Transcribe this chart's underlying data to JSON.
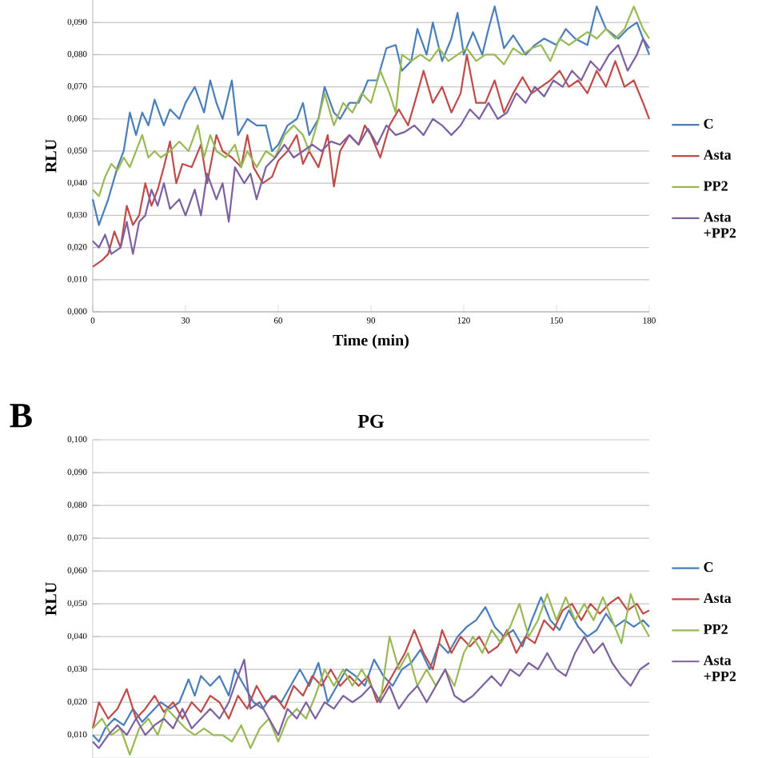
{
  "chart_data": [
    {
      "type": "line",
      "xlabel": "Time (min)",
      "ylabel": "RLU",
      "xlim": [
        0,
        180
      ],
      "xticks": [
        0,
        30,
        60,
        90,
        120,
        150,
        180
      ],
      "ylim": [
        0,
        0.097
      ],
      "yticks": [
        {
          "value": 0,
          "label": "0,000"
        },
        {
          "value": 0.01,
          "label": "0,010"
        },
        {
          "value": 0.02,
          "label": "0,020"
        },
        {
          "value": 0.03,
          "label": "0,030"
        },
        {
          "value": 0.04,
          "label": "0,040"
        },
        {
          "value": 0.05,
          "label": "0,050"
        },
        {
          "value": 0.06,
          "label": "0,060"
        },
        {
          "value": 0.07,
          "label": "0,070"
        },
        {
          "value": 0.08,
          "label": "0,080"
        },
        {
          "value": 0.09,
          "label": "0,090"
        }
      ],
      "grid": "y",
      "legend": "right",
      "marker": "none",
      "line_style": "solid",
      "series": [
        {
          "name": "C",
          "color": "#4a7ebb",
          "x": [
            0,
            2,
            5,
            8,
            10,
            12,
            14,
            16,
            18,
            20,
            23,
            25,
            28,
            30,
            33,
            36,
            38,
            40,
            42,
            45,
            47,
            50,
            53,
            56,
            58,
            60,
            63,
            66,
            68,
            70,
            73,
            75,
            78,
            80,
            83,
            86,
            89,
            92,
            95,
            98,
            100,
            103,
            105,
            108,
            110,
            113,
            116,
            118,
            120,
            123,
            126,
            128,
            130,
            133,
            136,
            140,
            143,
            146,
            150,
            153,
            156,
            160,
            163,
            166,
            170,
            173,
            176,
            178,
            180
          ],
          "values": [
            0.035,
            0.027,
            0.035,
            0.045,
            0.05,
            0.062,
            0.055,
            0.062,
            0.058,
            0.066,
            0.058,
            0.063,
            0.06,
            0.065,
            0.07,
            0.062,
            0.072,
            0.065,
            0.06,
            0.072,
            0.055,
            0.06,
            0.058,
            0.058,
            0.05,
            0.052,
            0.058,
            0.06,
            0.065,
            0.055,
            0.06,
            0.07,
            0.062,
            0.06,
            0.065,
            0.065,
            0.072,
            0.072,
            0.082,
            0.083,
            0.075,
            0.078,
            0.088,
            0.08,
            0.09,
            0.078,
            0.085,
            0.093,
            0.08,
            0.087,
            0.08,
            0.088,
            0.095,
            0.082,
            0.086,
            0.08,
            0.083,
            0.085,
            0.083,
            0.088,
            0.085,
            0.083,
            0.095,
            0.088,
            0.085,
            0.088,
            0.09,
            0.085,
            0.08
          ]
        },
        {
          "name": "Asta",
          "color": "#be4b48",
          "x": [
            0,
            3,
            5,
            7,
            9,
            11,
            13,
            15,
            17,
            19,
            21,
            23,
            25,
            27,
            29,
            32,
            35,
            37,
            40,
            42,
            45,
            48,
            50,
            52,
            55,
            58,
            60,
            63,
            66,
            68,
            70,
            73,
            76,
            78,
            80,
            83,
            86,
            88,
            90,
            93,
            96,
            99,
            102,
            105,
            107,
            110,
            113,
            116,
            119,
            121,
            124,
            127,
            130,
            133,
            136,
            139,
            142,
            145,
            148,
            151,
            154,
            157,
            160,
            163,
            166,
            169,
            172,
            175,
            178,
            180
          ],
          "values": [
            0.014,
            0.016,
            0.018,
            0.025,
            0.02,
            0.033,
            0.027,
            0.03,
            0.04,
            0.033,
            0.038,
            0.045,
            0.053,
            0.04,
            0.046,
            0.045,
            0.052,
            0.04,
            0.055,
            0.05,
            0.048,
            0.045,
            0.055,
            0.045,
            0.04,
            0.042,
            0.047,
            0.05,
            0.055,
            0.046,
            0.05,
            0.045,
            0.055,
            0.039,
            0.05,
            0.055,
            0.052,
            0.058,
            0.055,
            0.048,
            0.058,
            0.063,
            0.058,
            0.068,
            0.075,
            0.065,
            0.07,
            0.062,
            0.068,
            0.08,
            0.065,
            0.065,
            0.072,
            0.062,
            0.068,
            0.073,
            0.068,
            0.07,
            0.072,
            0.075,
            0.07,
            0.072,
            0.068,
            0.075,
            0.07,
            0.078,
            0.07,
            0.072,
            0.065,
            0.06
          ]
        },
        {
          "name": "PP2",
          "color": "#98b954",
          "x": [
            0,
            2,
            4,
            6,
            8,
            10,
            12,
            14,
            16,
            18,
            20,
            22,
            25,
            28,
            31,
            34,
            36,
            38,
            40,
            43,
            46,
            48,
            50,
            53,
            56,
            59,
            62,
            65,
            68,
            70,
            73,
            75,
            78,
            81,
            84,
            87,
            90,
            93,
            96,
            98,
            100,
            103,
            106,
            109,
            112,
            115,
            118,
            121,
            124,
            127,
            130,
            133,
            136,
            139,
            142,
            145,
            148,
            151,
            154,
            157,
            160,
            163,
            166,
            169,
            172,
            175,
            178,
            180
          ],
          "values": [
            0.038,
            0.036,
            0.042,
            0.046,
            0.044,
            0.048,
            0.045,
            0.05,
            0.055,
            0.048,
            0.05,
            0.048,
            0.05,
            0.053,
            0.05,
            0.058,
            0.048,
            0.055,
            0.05,
            0.048,
            0.052,
            0.045,
            0.05,
            0.045,
            0.05,
            0.048,
            0.055,
            0.058,
            0.055,
            0.05,
            0.06,
            0.068,
            0.058,
            0.065,
            0.062,
            0.068,
            0.065,
            0.075,
            0.068,
            0.062,
            0.08,
            0.078,
            0.08,
            0.078,
            0.082,
            0.078,
            0.08,
            0.082,
            0.078,
            0.08,
            0.08,
            0.077,
            0.082,
            0.08,
            0.082,
            0.083,
            0.078,
            0.085,
            0.083,
            0.085,
            0.087,
            0.085,
            0.088,
            0.085,
            0.088,
            0.095,
            0.088,
            0.085
          ]
        },
        {
          "name": "Asta +PP2",
          "color": "#7d60a0",
          "x": [
            0,
            2,
            4,
            6,
            9,
            11,
            13,
            15,
            17,
            19,
            21,
            23,
            25,
            28,
            30,
            33,
            35,
            37,
            40,
            42,
            44,
            46,
            49,
            51,
            53,
            56,
            59,
            62,
            65,
            68,
            71,
            74,
            77,
            80,
            83,
            86,
            89,
            92,
            95,
            98,
            101,
            104,
            107,
            110,
            113,
            116,
            119,
            122,
            125,
            128,
            131,
            134,
            137,
            140,
            143,
            146,
            149,
            152,
            155,
            158,
            161,
            164,
            167,
            170,
            173,
            176,
            178,
            180
          ],
          "values": [
            0.022,
            0.02,
            0.024,
            0.018,
            0.02,
            0.028,
            0.018,
            0.028,
            0.03,
            0.038,
            0.033,
            0.04,
            0.032,
            0.035,
            0.03,
            0.038,
            0.03,
            0.043,
            0.035,
            0.04,
            0.028,
            0.045,
            0.04,
            0.043,
            0.035,
            0.045,
            0.048,
            0.052,
            0.048,
            0.05,
            0.052,
            0.05,
            0.053,
            0.052,
            0.055,
            0.052,
            0.057,
            0.052,
            0.058,
            0.055,
            0.056,
            0.058,
            0.055,
            0.06,
            0.058,
            0.055,
            0.058,
            0.063,
            0.06,
            0.065,
            0.06,
            0.062,
            0.068,
            0.065,
            0.07,
            0.067,
            0.072,
            0.07,
            0.075,
            0.072,
            0.078,
            0.075,
            0.08,
            0.083,
            0.075,
            0.08,
            0.085,
            0.082
          ]
        }
      ]
    },
    {
      "type": "line",
      "title": "PG",
      "annotations": [
        "B"
      ],
      "ylabel": "RLU",
      "xlim": [
        0,
        180
      ],
      "ylim": [
        0.003,
        0.1
      ],
      "tick_labels": "y",
      "yticks": [
        {
          "value": 0.01,
          "label": "0,010"
        },
        {
          "value": 0.02,
          "label": "0,020"
        },
        {
          "value": 0.03,
          "label": "0,030"
        },
        {
          "value": 0.04,
          "label": "0,040"
        },
        {
          "value": 0.05,
          "label": "0,050"
        },
        {
          "value": 0.06,
          "label": "0,060"
        },
        {
          "value": 0.07,
          "label": "0,070"
        },
        {
          "value": 0.08,
          "label": "0,080"
        },
        {
          "value": 0.09,
          "label": "0,090"
        },
        {
          "value": 0.1,
          "label": "0,100"
        }
      ],
      "grid": "y",
      "legend": "right",
      "marker": "none",
      "line_style": "solid",
      "series": [
        {
          "name": "C",
          "color": "#4a7ebb",
          "x": [
            0,
            2,
            4,
            7,
            10,
            13,
            16,
            19,
            22,
            25,
            28,
            31,
            33,
            35,
            38,
            41,
            44,
            46,
            49,
            52,
            55,
            58,
            61,
            64,
            67,
            70,
            73,
            76,
            79,
            82,
            85,
            88,
            91,
            94,
            97,
            100,
            103,
            106,
            109,
            112,
            115,
            118,
            121,
            124,
            127,
            130,
            133,
            136,
            139,
            142,
            145,
            148,
            151,
            154,
            157,
            160,
            163,
            166,
            169,
            172,
            175,
            178,
            180
          ],
          "values": [
            0.01,
            0.008,
            0.012,
            0.015,
            0.013,
            0.018,
            0.014,
            0.017,
            0.02,
            0.018,
            0.02,
            0.027,
            0.022,
            0.028,
            0.025,
            0.028,
            0.022,
            0.03,
            0.025,
            0.02,
            0.018,
            0.022,
            0.02,
            0.025,
            0.03,
            0.025,
            0.032,
            0.02,
            0.025,
            0.03,
            0.028,
            0.025,
            0.033,
            0.028,
            0.025,
            0.03,
            0.032,
            0.036,
            0.03,
            0.038,
            0.035,
            0.04,
            0.043,
            0.045,
            0.049,
            0.043,
            0.04,
            0.042,
            0.037,
            0.045,
            0.052,
            0.045,
            0.042,
            0.048,
            0.043,
            0.04,
            0.042,
            0.047,
            0.043,
            0.045,
            0.043,
            0.045,
            0.043
          ]
        },
        {
          "name": "Asta",
          "color": "#be4b48",
          "x": [
            0,
            2,
            5,
            8,
            11,
            14,
            17,
            20,
            23,
            26,
            29,
            32,
            35,
            38,
            41,
            44,
            47,
            50,
            53,
            56,
            59,
            62,
            65,
            68,
            71,
            74,
            77,
            80,
            83,
            86,
            89,
            92,
            95,
            98,
            101,
            104,
            107,
            110,
            113,
            116,
            119,
            122,
            125,
            128,
            131,
            134,
            137,
            140,
            143,
            146,
            149,
            152,
            155,
            158,
            161,
            164,
            167,
            170,
            173,
            176,
            178,
            180
          ],
          "values": [
            0.012,
            0.02,
            0.015,
            0.018,
            0.024,
            0.015,
            0.018,
            0.022,
            0.017,
            0.02,
            0.015,
            0.02,
            0.017,
            0.022,
            0.02,
            0.015,
            0.022,
            0.018,
            0.025,
            0.02,
            0.022,
            0.018,
            0.025,
            0.022,
            0.028,
            0.025,
            0.03,
            0.025,
            0.028,
            0.025,
            0.028,
            0.02,
            0.025,
            0.03,
            0.035,
            0.042,
            0.035,
            0.03,
            0.042,
            0.035,
            0.04,
            0.037,
            0.04,
            0.035,
            0.037,
            0.042,
            0.035,
            0.04,
            0.038,
            0.045,
            0.042,
            0.048,
            0.05,
            0.045,
            0.05,
            0.047,
            0.05,
            0.052,
            0.048,
            0.05,
            0.047,
            0.048
          ]
        },
        {
          "name": "PP2",
          "color": "#98b954",
          "x": [
            0,
            3,
            6,
            9,
            12,
            15,
            18,
            21,
            24,
            27,
            30,
            33,
            36,
            39,
            42,
            45,
            48,
            51,
            54,
            57,
            60,
            63,
            66,
            69,
            72,
            75,
            78,
            81,
            84,
            87,
            90,
            93,
            96,
            99,
            102,
            105,
            108,
            111,
            114,
            117,
            120,
            123,
            126,
            129,
            132,
            135,
            138,
            141,
            144,
            147,
            150,
            153,
            156,
            159,
            162,
            165,
            168,
            171,
            174,
            177,
            180
          ],
          "values": [
            0.012,
            0.015,
            0.01,
            0.012,
            0.004,
            0.012,
            0.015,
            0.01,
            0.018,
            0.015,
            0.012,
            0.01,
            0.012,
            0.01,
            0.01,
            0.008,
            0.013,
            0.006,
            0.012,
            0.015,
            0.008,
            0.015,
            0.018,
            0.015,
            0.022,
            0.03,
            0.025,
            0.03,
            0.025,
            0.03,
            0.025,
            0.02,
            0.04,
            0.03,
            0.035,
            0.025,
            0.03,
            0.025,
            0.03,
            0.025,
            0.035,
            0.04,
            0.035,
            0.042,
            0.038,
            0.043,
            0.05,
            0.04,
            0.045,
            0.053,
            0.045,
            0.052,
            0.045,
            0.05,
            0.045,
            0.052,
            0.045,
            0.038,
            0.053,
            0.045,
            0.04
          ]
        },
        {
          "name": "Asta +PP2",
          "color": "#7d60a0",
          "x": [
            0,
            2,
            5,
            8,
            11,
            14,
            17,
            20,
            23,
            26,
            29,
            32,
            35,
            38,
            41,
            44,
            47,
            49,
            51,
            54,
            57,
            60,
            63,
            66,
            69,
            72,
            75,
            78,
            81,
            84,
            87,
            90,
            93,
            96,
            99,
            102,
            105,
            108,
            111,
            114,
            117,
            120,
            123,
            126,
            129,
            132,
            135,
            138,
            141,
            144,
            147,
            150,
            153,
            156,
            159,
            162,
            165,
            168,
            171,
            174,
            177,
            180
          ],
          "values": [
            0.008,
            0.006,
            0.01,
            0.013,
            0.01,
            0.015,
            0.01,
            0.013,
            0.015,
            0.012,
            0.018,
            0.012,
            0.015,
            0.018,
            0.015,
            0.02,
            0.028,
            0.033,
            0.018,
            0.02,
            0.015,
            0.01,
            0.018,
            0.015,
            0.02,
            0.015,
            0.02,
            0.018,
            0.022,
            0.02,
            0.022,
            0.025,
            0.02,
            0.025,
            0.018,
            0.022,
            0.025,
            0.02,
            0.025,
            0.03,
            0.022,
            0.02,
            0.022,
            0.025,
            0.028,
            0.025,
            0.03,
            0.028,
            0.032,
            0.03,
            0.035,
            0.03,
            0.028,
            0.035,
            0.04,
            0.035,
            0.038,
            0.032,
            0.028,
            0.025,
            0.03,
            0.032
          ]
        }
      ]
    }
  ]
}
